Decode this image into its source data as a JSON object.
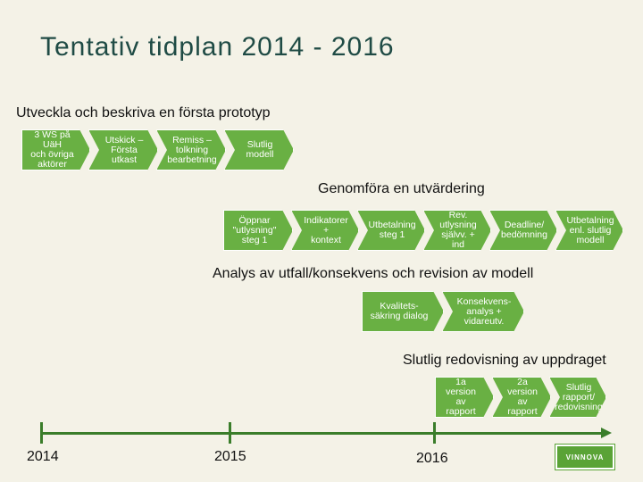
{
  "title": "Tentativ tidplan 2014 - 2016",
  "phases": [
    {
      "label": "Utveckla och beskriva en första prototyp",
      "steps": [
        "3 WS på UäH\noch övriga\naktörer",
        "Utskick –\nFörsta utkast",
        "Remiss –\ntolkning\nbearbetning",
        "Slutlig modell"
      ]
    },
    {
      "label": "Genomföra en utvärdering",
      "steps": [
        "Öppnar\n\"utlysning\"\nsteg 1",
        "Indikatorer +\nkontext",
        "Utbetalning\nsteg 1",
        "Rev.\nutlysning\nsjälvv. + ind",
        "Deadline/\nbedömning",
        "Utbetalning\nenl. slutlig\nmodell"
      ]
    },
    {
      "label": "Analys av utfall/konsekvens och revision av modell",
      "steps": [
        "Kvalitets-\nsäkring dialog",
        "Konsekvens-\nanalys +\nvidareutv."
      ]
    },
    {
      "label": "Slutlig redovisning av uppdraget",
      "steps": [
        "1a version\nav rapport",
        "2a version\nav rapport",
        "Slutlig\nrapport/\nredovisning"
      ]
    }
  ],
  "timeline": {
    "years": [
      "2014",
      "2015",
      "2016"
    ]
  },
  "logo_text": "VINNOVA",
  "colors": {
    "accent": "#69b043",
    "line": "#3a7d2a",
    "title": "#1f4b45"
  }
}
